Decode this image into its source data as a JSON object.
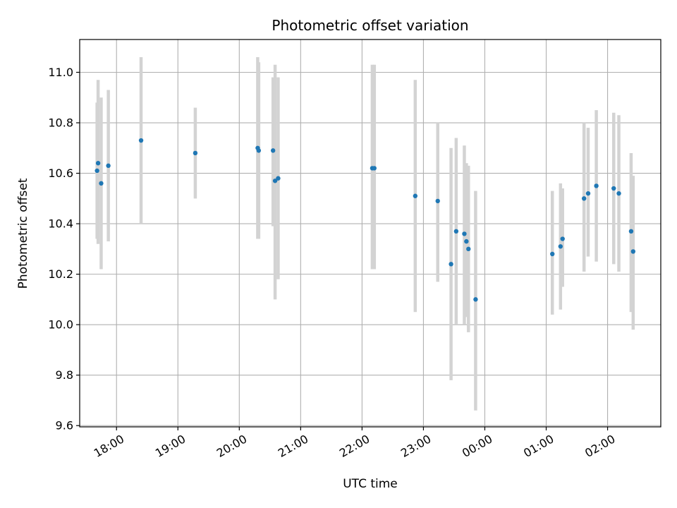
{
  "chart_data": {
    "type": "scatter",
    "title": "Photometric offset variation",
    "xlabel": "UTC time",
    "ylabel": "Photometric offset",
    "xlim": [
      "17:24",
      "02:52"
    ],
    "ylim": [
      9.595,
      11.13
    ],
    "grid": true,
    "x_ticks": [
      "18:00",
      "19:00",
      "20:00",
      "21:00",
      "22:00",
      "23:00",
      "00:00",
      "01:00",
      "02:00"
    ],
    "y_ticks": [
      "9.6",
      "9.8",
      "10.0",
      "10.2",
      "10.4",
      "10.6",
      "10.8",
      "11.0"
    ],
    "colors": {
      "point": "#1f77b4",
      "error_bar": "#d3d3d3",
      "grid": "#b0b0b0"
    },
    "series": [
      {
        "points": [
          {
            "x": "17:41",
            "y": 10.61,
            "err_low": 10.34,
            "err_high": 10.88
          },
          {
            "x": "17:42",
            "y": 10.64,
            "err_low": 10.32,
            "err_high": 10.97
          },
          {
            "x": "17:45",
            "y": 10.56,
            "err_low": 10.22,
            "err_high": 10.9
          },
          {
            "x": "17:52",
            "y": 10.63,
            "err_low": 10.33,
            "err_high": 10.93
          },
          {
            "x": "18:24",
            "y": 10.73,
            "err_low": 10.4,
            "err_high": 11.06
          },
          {
            "x": "19:17",
            "y": 10.68,
            "err_low": 10.5,
            "err_high": 10.86
          },
          {
            "x": "20:18",
            "y": 10.7,
            "err_low": 10.34,
            "err_high": 11.06
          },
          {
            "x": "20:19",
            "y": 10.69,
            "err_low": 10.34,
            "err_high": 11.04
          },
          {
            "x": "20:33",
            "y": 10.69,
            "err_low": 10.39,
            "err_high": 10.98
          },
          {
            "x": "20:35",
            "y": 10.57,
            "err_low": 10.1,
            "err_high": 11.03
          },
          {
            "x": "20:38",
            "y": 10.58,
            "err_low": 10.18,
            "err_high": 10.98
          },
          {
            "x": "22:10",
            "y": 10.62,
            "err_low": 10.22,
            "err_high": 11.03
          },
          {
            "x": "22:12",
            "y": 10.62,
            "err_low": 10.22,
            "err_high": 11.03
          },
          {
            "x": "22:52",
            "y": 10.51,
            "err_low": 10.05,
            "err_high": 10.97
          },
          {
            "x": "23:14",
            "y": 10.49,
            "err_low": 10.17,
            "err_high": 10.8
          },
          {
            "x": "23:27",
            "y": 10.24,
            "err_low": 9.78,
            "err_high": 10.7
          },
          {
            "x": "23:32",
            "y": 10.37,
            "err_low": 10.0,
            "err_high": 10.74
          },
          {
            "x": "23:40",
            "y": 10.36,
            "err_low": 10.0,
            "err_high": 10.71
          },
          {
            "x": "23:42",
            "y": 10.33,
            "err_low": 10.03,
            "err_high": 10.64
          },
          {
            "x": "23:44",
            "y": 10.3,
            "err_low": 9.97,
            "err_high": 10.63
          },
          {
            "x": "23:51",
            "y": 10.1,
            "err_low": 9.66,
            "err_high": 10.53
          },
          {
            "x": "01:06",
            "y": 10.28,
            "err_low": 10.04,
            "err_high": 10.53
          },
          {
            "x": "01:14",
            "y": 10.31,
            "err_low": 10.06,
            "err_high": 10.56
          },
          {
            "x": "01:16",
            "y": 10.34,
            "err_low": 10.15,
            "err_high": 10.54
          },
          {
            "x": "01:37",
            "y": 10.5,
            "err_low": 10.21,
            "err_high": 10.8
          },
          {
            "x": "01:41",
            "y": 10.52,
            "err_low": 10.27,
            "err_high": 10.78
          },
          {
            "x": "01:49",
            "y": 10.55,
            "err_low": 10.25,
            "err_high": 10.85
          },
          {
            "x": "02:06",
            "y": 10.54,
            "err_low": 10.24,
            "err_high": 10.84
          },
          {
            "x": "02:11",
            "y": 10.52,
            "err_low": 10.21,
            "err_high": 10.83
          },
          {
            "x": "02:23",
            "y": 10.37,
            "err_low": 10.05,
            "err_high": 10.68
          },
          {
            "x": "02:25",
            "y": 10.29,
            "err_low": 9.98,
            "err_high": 10.59
          }
        ]
      }
    ]
  }
}
